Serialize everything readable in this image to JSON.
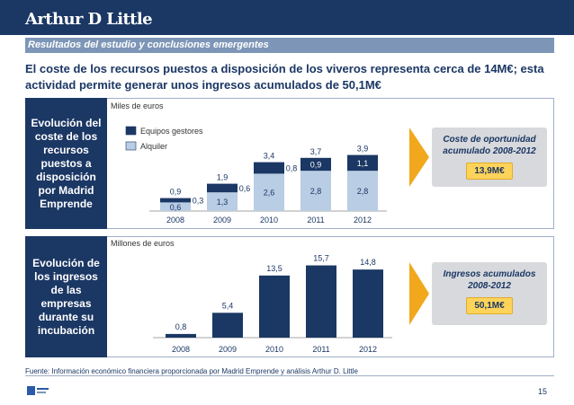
{
  "header": {
    "logo": "Arthur D Little"
  },
  "section_bar": "Resultados del estudio y conclusiones emergentes",
  "headline": "El coste de los recursos puestos a disposición de los viveros representa cerca de 14M€; esta actividad permite generar unos ingresos acumulados de 50,1M€",
  "panel1": {
    "label": "Evolución del coste de los recursos puestos a disposición por Madrid Emprende",
    "unit": "Miles de euros",
    "callout_title": "Coste de oportunidad acumulado 2008-2012",
    "callout_value": "13,9M€"
  },
  "panel2": {
    "label": "Evolución de los ingresos de las empresas durante su incubación",
    "unit": "Millones de euros",
    "callout_title": "Ingresos acumulados 2008-2012",
    "callout_value": "50,1M€"
  },
  "source": "Fuente: Información económico financiera proporcionada por Madrid Emprende y análisis Arthur D. Little",
  "page_number": "15",
  "colors": {
    "navy": "#1b3764",
    "light_blue": "#b9cde4",
    "callout_grey": "#d7d9dc",
    "arrow_orange": "#f2a81d",
    "pill_yellow": "#fdd35a"
  },
  "chart_data": [
    {
      "type": "bar",
      "stacked": true,
      "categories": [
        "2008",
        "2009",
        "2010",
        "2011",
        "2012"
      ],
      "series": [
        {
          "name": "Alquiler",
          "values": [
            0.6,
            1.3,
            2.6,
            2.8,
            2.8
          ],
          "labels": [
            "0,6",
            "1,3",
            "2,6",
            "2,8",
            "2,8"
          ],
          "color": "#b9cde4"
        },
        {
          "name": "Equipos gestores",
          "values": [
            0.3,
            0.6,
            0.8,
            0.9,
            1.1
          ],
          "labels": [
            "0,3",
            "0,6",
            "0,8",
            "0,9",
            "1,1"
          ],
          "color": "#1b3764"
        }
      ],
      "totals": [
        0.9,
        1.9,
        3.4,
        3.7,
        3.9
      ],
      "total_labels": [
        "0,9",
        "1,9",
        "3,4",
        "3,7",
        "3,9"
      ],
      "legend": [
        "Equipos gestores",
        "Alquiler"
      ],
      "legend_position": "top-left",
      "ylabel": "Miles de euros",
      "ylim": [
        0,
        4
      ]
    },
    {
      "type": "bar",
      "categories": [
        "2008",
        "2009",
        "2010",
        "2011",
        "2012"
      ],
      "values": [
        0.8,
        5.4,
        13.5,
        15.7,
        14.8
      ],
      "labels": [
        "0,8",
        "5,4",
        "13,5",
        "15,7",
        "14,8"
      ],
      "ylabel": "Millones de euros",
      "ylim": [
        0,
        16
      ]
    }
  ]
}
